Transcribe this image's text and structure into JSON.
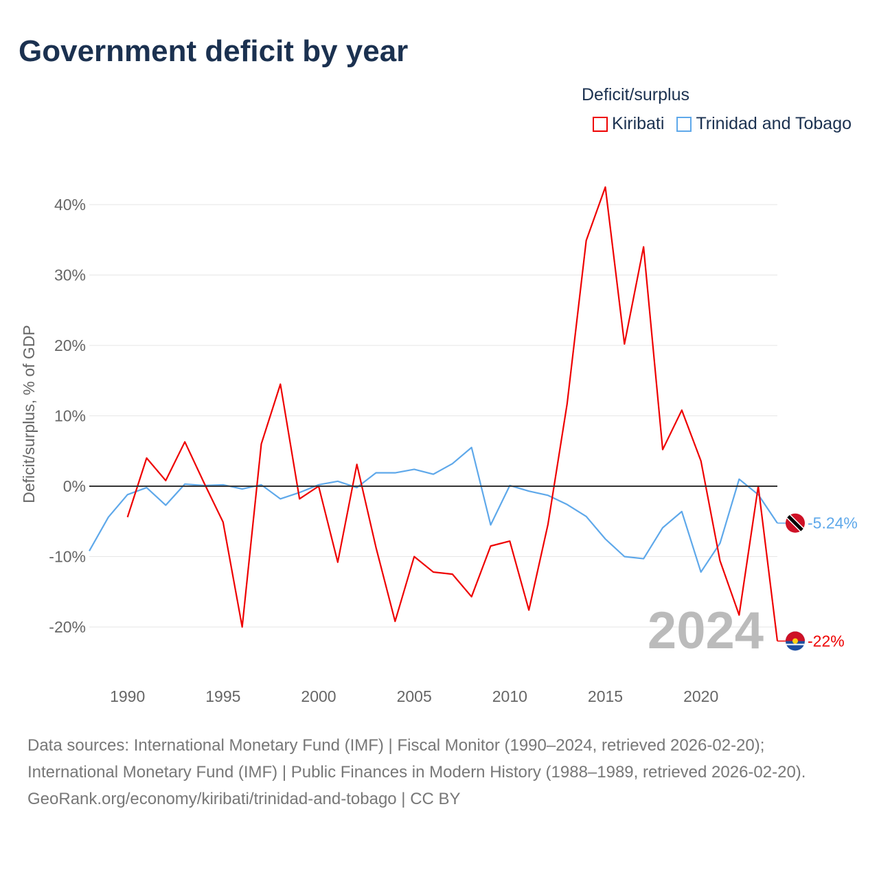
{
  "title": "Government deficit by year",
  "chart_data": {
    "type": "line",
    "title": "Government deficit by year",
    "ylabel": "Deficit/surplus, % of GDP",
    "xlabel": "",
    "legend_title": "Deficit/surplus",
    "legend_position": "top-right",
    "xlim": [
      1988,
      2024
    ],
    "ylim": [
      -25,
      45
    ],
    "x_ticks": [
      1990,
      1995,
      2000,
      2005,
      2010,
      2015,
      2020
    ],
    "x_tick_labels": [
      "1990",
      "1995",
      "2000",
      "2005",
      "2010",
      "2015",
      "2020"
    ],
    "y_ticks": [
      40,
      30,
      20,
      10,
      0,
      -10,
      -20
    ],
    "y_tick_labels": [
      "40%",
      "30%",
      "20%",
      "10%",
      "0%",
      "-10%",
      "-20%"
    ],
    "year_watermark": "2024",
    "series": [
      {
        "name": "Kiribati",
        "color": "#ee0000",
        "end_label": "-22%",
        "x": [
          1990,
          1991,
          1992,
          1993,
          1994,
          1995,
          1996,
          1997,
          1998,
          1999,
          2000,
          2001,
          2002,
          2003,
          2004,
          2005,
          2006,
          2007,
          2008,
          2009,
          2010,
          2011,
          2012,
          2013,
          2014,
          2015,
          2016,
          2017,
          2018,
          2019,
          2020,
          2021,
          2022,
          2023,
          2024
        ],
        "values": [
          -4.4,
          4.0,
          0.8,
          6.3,
          0.5,
          -5.1,
          -20.0,
          6.0,
          14.5,
          -1.8,
          0,
          -10.8,
          3.1,
          -8.7,
          -19.2,
          -10.0,
          -12.2,
          -12.5,
          -15.7,
          -8.5,
          -7.8,
          -17.6,
          -5.4,
          11.7,
          34.9,
          42.5,
          20.2,
          34.0,
          5.2,
          10.8,
          3.6,
          -10.6,
          -18.3,
          0,
          -22
        ]
      },
      {
        "name": "Trinidad and Tobago",
        "color": "#5ea8ea",
        "end_label": "-5.24%",
        "x": [
          1988,
          1989,
          1990,
          1991,
          1992,
          1993,
          1994,
          1995,
          1996,
          1997,
          1998,
          1999,
          2000,
          2001,
          2002,
          2003,
          2004,
          2005,
          2006,
          2007,
          2008,
          2009,
          2010,
          2011,
          2012,
          2013,
          2014,
          2015,
          2016,
          2017,
          2018,
          2019,
          2020,
          2021,
          2022,
          2023,
          2024
        ],
        "values": [
          -9.2,
          -4.4,
          -1.2,
          -0.2,
          -2.7,
          0.3,
          0.1,
          0.2,
          -0.4,
          0.2,
          -1.8,
          -0.9,
          0.2,
          0.7,
          -0.2,
          1.9,
          1.9,
          2.4,
          1.7,
          3.2,
          5.5,
          -5.5,
          0.1,
          -0.7,
          -1.3,
          -2.6,
          -4.3,
          -7.5,
          -10.0,
          -10.3,
          -5.9,
          -3.6,
          -12.2,
          -8.1,
          1.0,
          -1.2,
          -5.24
        ]
      }
    ]
  },
  "footer": {
    "sources": "Data sources: International Monetary Fund (IMF) | Fiscal Monitor (1990–2024, retrieved 2026-02-20); International Monetary Fund (IMF) | Public Finances in Modern History (1988–1989, retrieved 2026-02-20).",
    "link": "GeoRank.org/economy/kiribati/trinidad-and-tobago | CC BY"
  }
}
